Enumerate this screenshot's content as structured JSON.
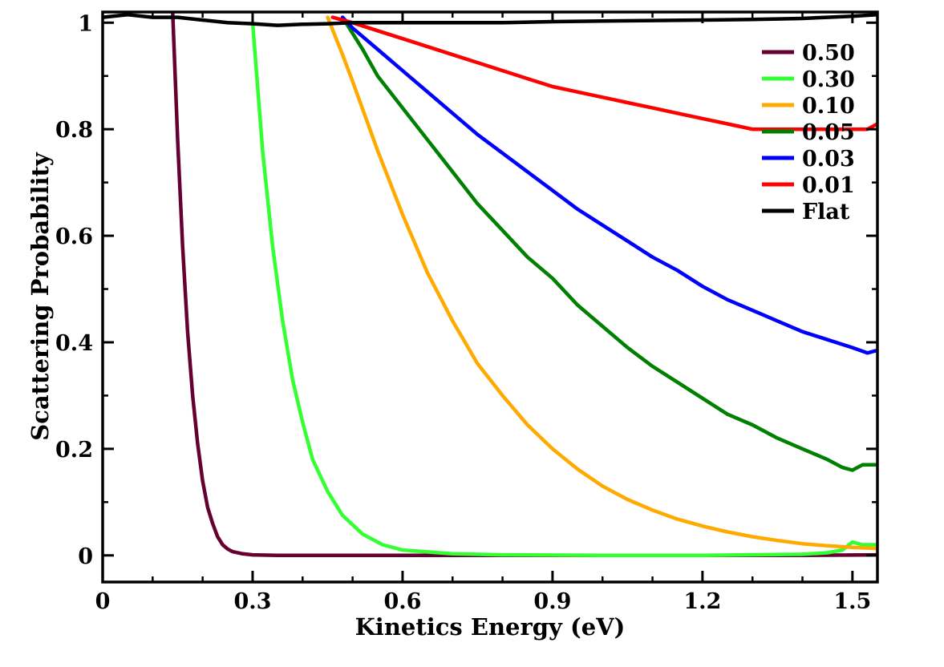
{
  "chart_data": {
    "type": "line",
    "title": "",
    "xlabel": "Kinetics Energy (eV)",
    "ylabel": "Scattering Probability",
    "xlim": [
      0,
      1.55
    ],
    "ylim": [
      -0.05,
      1.02
    ],
    "xticks": [
      0,
      0.3,
      0.6,
      0.9,
      1.2,
      1.5
    ],
    "xtick_labels": [
      "0",
      "0.3",
      "0.6",
      "0.9",
      "1.2",
      "1.5"
    ],
    "yticks": [
      0,
      0.2,
      0.4,
      0.6,
      0.8,
      1
    ],
    "ytick_labels": [
      "0",
      "0.2",
      "0.4",
      "0.6",
      "0.8",
      "1"
    ],
    "grid": false,
    "legend_position": "top-right",
    "series": [
      {
        "name": "0.50",
        "color": "#660033",
        "x": [
          0.14,
          0.15,
          0.16,
          0.17,
          0.18,
          0.19,
          0.2,
          0.21,
          0.22,
          0.23,
          0.24,
          0.25,
          0.26,
          0.28,
          0.3,
          0.35,
          0.5,
          0.8,
          1.1,
          1.4,
          1.55
        ],
        "y": [
          1.02,
          0.78,
          0.58,
          0.42,
          0.3,
          0.21,
          0.14,
          0.09,
          0.06,
          0.035,
          0.02,
          0.012,
          0.007,
          0.003,
          0.001,
          0.0,
          0.0,
          0.0,
          0.0,
          0.0,
          0.001
        ]
      },
      {
        "name": "0.30",
        "color": "#33ff33",
        "x": [
          0.3,
          0.32,
          0.34,
          0.36,
          0.38,
          0.4,
          0.42,
          0.45,
          0.48,
          0.52,
          0.56,
          0.6,
          0.7,
          0.8,
          1.0,
          1.2,
          1.4,
          1.45,
          1.48,
          1.5,
          1.52,
          1.55
        ],
        "y": [
          1.0,
          0.76,
          0.58,
          0.44,
          0.33,
          0.25,
          0.18,
          0.12,
          0.075,
          0.04,
          0.02,
          0.01,
          0.003,
          0.001,
          0.0,
          0.0,
          0.002,
          0.005,
          0.01,
          0.025,
          0.02,
          0.02
        ]
      },
      {
        "name": "0.10",
        "color": "#ffaa00",
        "x": [
          0.45,
          0.48,
          0.5,
          0.55,
          0.6,
          0.65,
          0.7,
          0.75,
          0.8,
          0.85,
          0.9,
          0.95,
          1.0,
          1.05,
          1.1,
          1.15,
          1.2,
          1.25,
          1.3,
          1.35,
          1.4,
          1.45,
          1.5,
          1.55
        ],
        "y": [
          1.01,
          0.94,
          0.89,
          0.76,
          0.64,
          0.53,
          0.44,
          0.36,
          0.3,
          0.245,
          0.2,
          0.162,
          0.13,
          0.105,
          0.085,
          0.068,
          0.055,
          0.044,
          0.035,
          0.028,
          0.022,
          0.018,
          0.015,
          0.013
        ]
      },
      {
        "name": "0.05",
        "color": "#008000",
        "x": [
          0.48,
          0.52,
          0.55,
          0.6,
          0.65,
          0.7,
          0.75,
          0.8,
          0.85,
          0.9,
          0.95,
          1.0,
          1.05,
          1.1,
          1.15,
          1.2,
          1.25,
          1.3,
          1.35,
          1.4,
          1.45,
          1.48,
          1.5,
          1.52,
          1.55
        ],
        "y": [
          1.01,
          0.95,
          0.9,
          0.84,
          0.78,
          0.72,
          0.66,
          0.61,
          0.56,
          0.52,
          0.47,
          0.43,
          0.39,
          0.355,
          0.325,
          0.295,
          0.265,
          0.245,
          0.22,
          0.2,
          0.18,
          0.165,
          0.16,
          0.17,
          0.17
        ]
      },
      {
        "name": "0.03",
        "color": "#0000ff",
        "x": [
          0.48,
          0.5,
          0.55,
          0.6,
          0.65,
          0.7,
          0.75,
          0.8,
          0.85,
          0.9,
          0.95,
          1.0,
          1.05,
          1.1,
          1.15,
          1.2,
          1.25,
          1.3,
          1.35,
          1.4,
          1.45,
          1.5,
          1.53,
          1.55
        ],
        "y": [
          1.01,
          0.99,
          0.95,
          0.91,
          0.87,
          0.83,
          0.79,
          0.755,
          0.72,
          0.685,
          0.65,
          0.62,
          0.59,
          0.56,
          0.535,
          0.505,
          0.48,
          0.46,
          0.44,
          0.42,
          0.405,
          0.39,
          0.38,
          0.385
        ]
      },
      {
        "name": "0.01",
        "color": "#ff0000",
        "x": [
          0.46,
          0.5,
          0.55,
          0.6,
          0.65,
          0.7,
          0.75,
          0.8,
          0.85,
          0.9,
          0.95,
          1.0,
          1.05,
          1.1,
          1.15,
          1.2,
          1.25,
          1.3,
          1.53,
          1.55
        ],
        "y": [
          1.01,
          1.0,
          0.985,
          0.97,
          0.955,
          0.94,
          0.925,
          0.91,
          0.895,
          0.88,
          0.87,
          0.86,
          0.85,
          0.84,
          0.83,
          0.82,
          0.81,
          0.8,
          0.8,
          0.81
        ]
      },
      {
        "name": "Flat",
        "color": "#000000",
        "x": [
          0.0,
          0.05,
          0.1,
          0.15,
          0.2,
          0.25,
          0.3,
          0.35,
          0.4,
          0.45,
          0.5,
          0.6,
          0.7,
          0.8,
          0.9,
          1.0,
          1.1,
          1.2,
          1.3,
          1.4,
          1.45,
          1.5,
          1.55
        ],
        "y": [
          1.01,
          1.015,
          1.01,
          1.01,
          1.005,
          1.0,
          0.998,
          0.995,
          0.997,
          0.998,
          1.0,
          1.0,
          1.0,
          1.0,
          1.002,
          1.003,
          1.004,
          1.005,
          1.006,
          1.008,
          1.01,
          1.012,
          1.015
        ]
      }
    ]
  }
}
